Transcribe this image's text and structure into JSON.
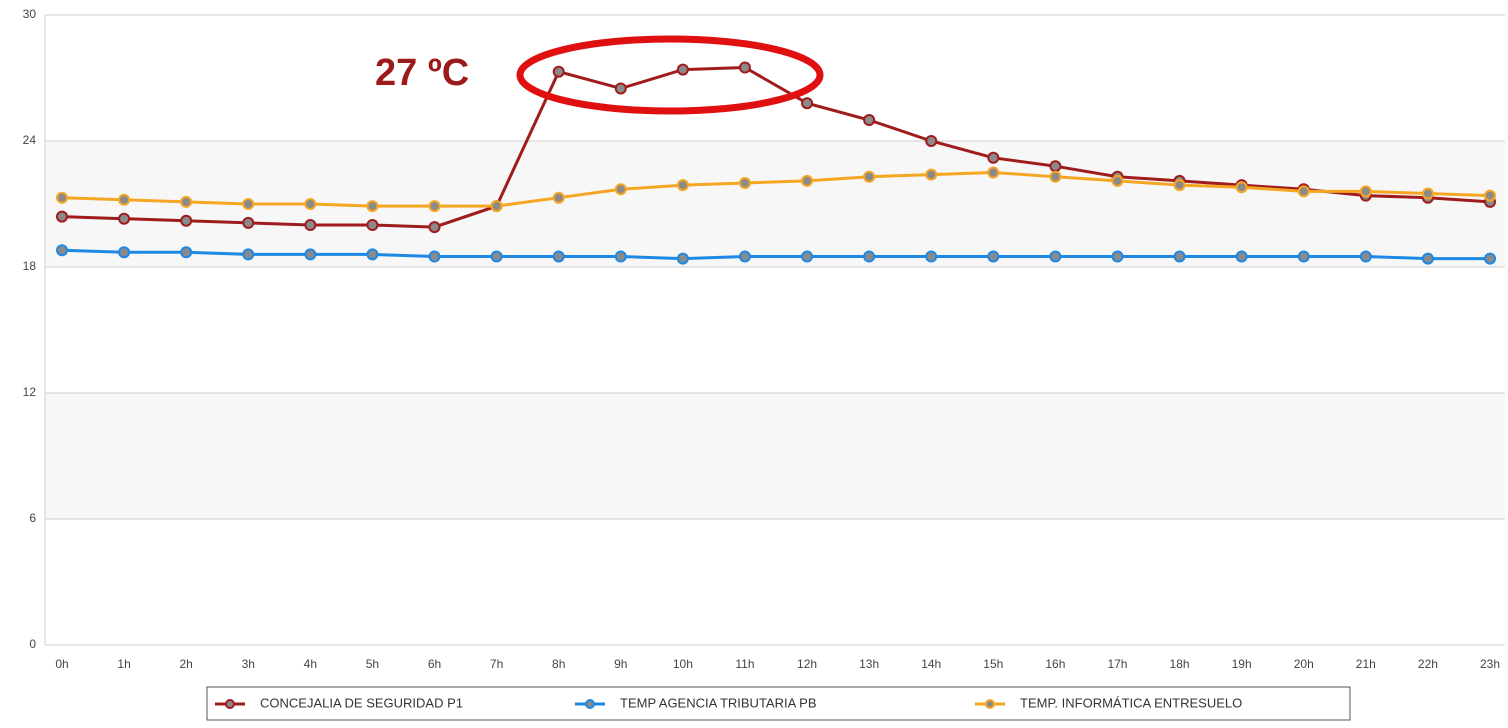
{
  "chart_data": {
    "type": "line",
    "annotation": "27 ºC",
    "categories": [
      "0h",
      "1h",
      "2h",
      "3h",
      "4h",
      "5h",
      "6h",
      "7h",
      "8h",
      "9h",
      "10h",
      "11h",
      "12h",
      "13h",
      "14h",
      "15h",
      "16h",
      "17h",
      "18h",
      "19h",
      "20h",
      "21h",
      "22h",
      "23h"
    ],
    "series": [
      {
        "name": "CONCEJALIA DE SEGURIDAD P1",
        "color": "#a01c1c",
        "values": [
          20.4,
          20.3,
          20.2,
          20.1,
          20.0,
          20.0,
          19.9,
          20.9,
          27.3,
          26.5,
          27.4,
          27.5,
          25.8,
          25.0,
          24.0,
          23.2,
          22.8,
          22.3,
          22.1,
          21.9,
          21.7,
          21.4,
          21.3,
          21.1
        ]
      },
      {
        "name": "TEMP AGENCIA TRIBUTARIA PB",
        "color": "#1e88e5",
        "values": [
          18.8,
          18.7,
          18.7,
          18.6,
          18.6,
          18.6,
          18.5,
          18.5,
          18.5,
          18.5,
          18.4,
          18.5,
          18.5,
          18.5,
          18.5,
          18.5,
          18.5,
          18.5,
          18.5,
          18.5,
          18.5,
          18.5,
          18.4,
          18.4
        ]
      },
      {
        "name": "TEMP. INFORMÁTICA ENTRESUELO",
        "color": "#f5a623",
        "values": [
          21.3,
          21.2,
          21.1,
          21.0,
          21.0,
          20.9,
          20.9,
          20.9,
          21.3,
          21.7,
          21.9,
          22.0,
          22.1,
          22.3,
          22.4,
          22.5,
          22.3,
          22.1,
          21.9,
          21.8,
          21.6,
          21.6,
          21.5,
          21.4
        ]
      }
    ],
    "ylim": [
      0,
      30
    ],
    "yticks": [
      0,
      6,
      12,
      18,
      24,
      30
    ],
    "grid": true,
    "legend": "bottom"
  }
}
